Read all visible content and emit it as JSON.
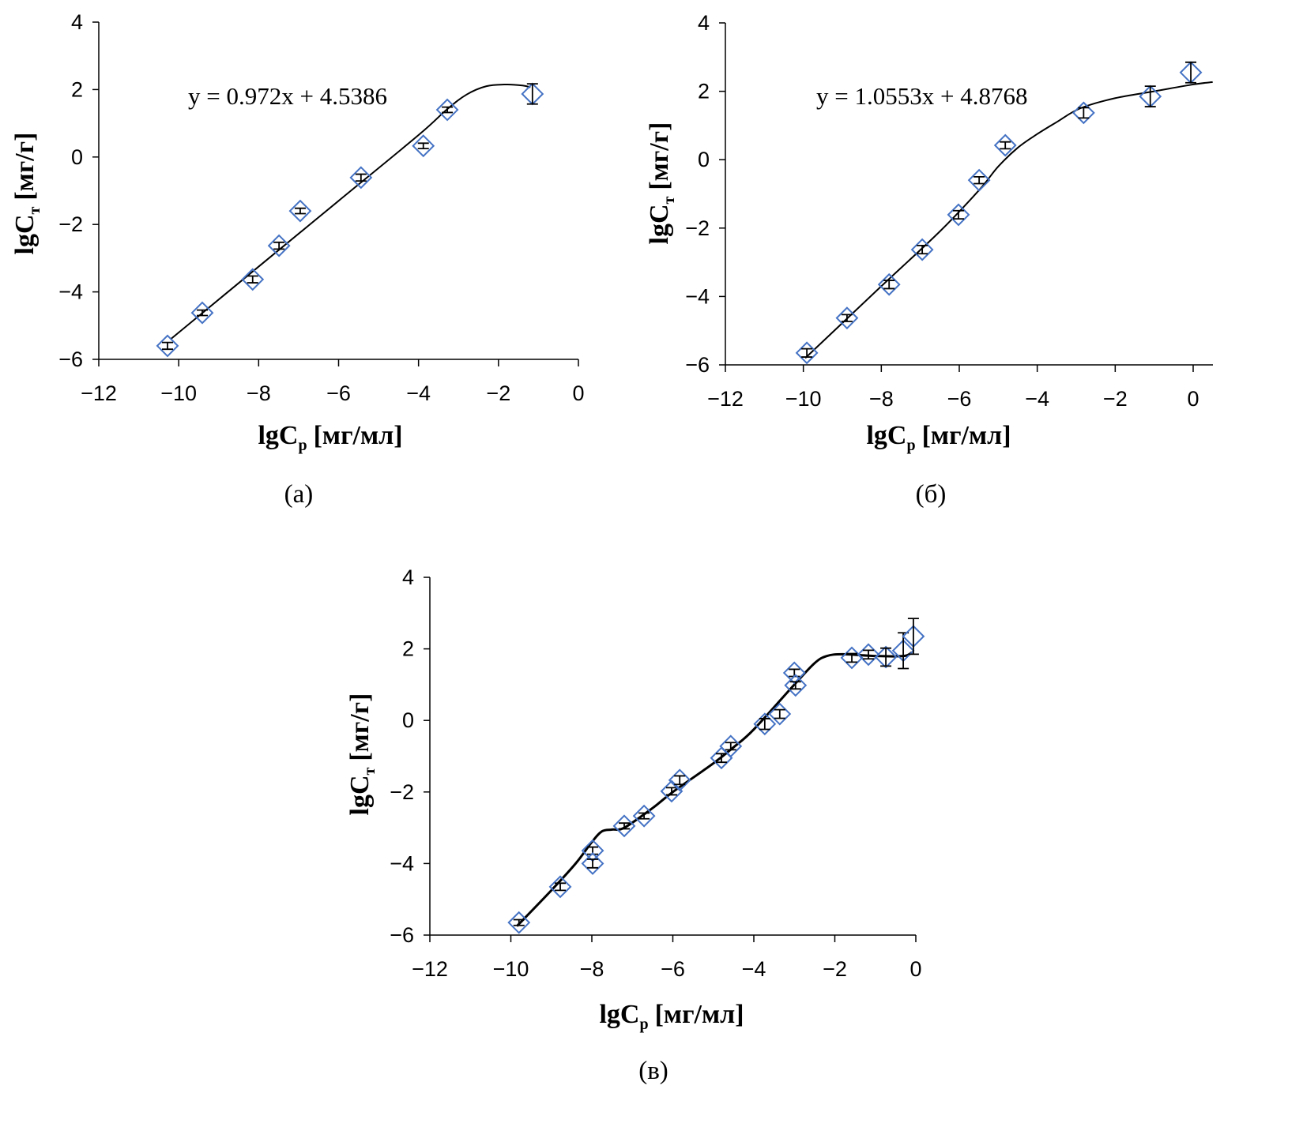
{
  "chart_data": [
    {
      "type": "scatter",
      "caption": "(а)",
      "xlabel": {
        "main": "lgC",
        "sub": "р",
        "unit": "[мг/мл]"
      },
      "ylabel": {
        "main": "lgC",
        "sub": "т",
        "unit": "[мг/г]"
      },
      "xlim": [
        -12,
        0
      ],
      "ylim": [
        -6,
        4
      ],
      "xticks": [
        -12,
        -10,
        -8,
        -6,
        -4,
        -2,
        0
      ],
      "yticks": [
        -6,
        -4,
        -2,
        0,
        2,
        4
      ],
      "xtick_labels": [
        "−12",
        "−10",
        "−8",
        "−6",
        "−4",
        "−2",
        "0"
      ],
      "ytick_labels": [
        "−6",
        "−4",
        "−2",
        "0",
        "2",
        "4"
      ],
      "annotation": "y = 0.972x + 4.5386",
      "marker_color": "#4472c4",
      "points": [
        {
          "x": -10.28,
          "y": -5.6,
          "err": 0.1
        },
        {
          "x": -9.41,
          "y": -4.62,
          "err": 0.08
        },
        {
          "x": -8.15,
          "y": -3.63,
          "err": 0.1
        },
        {
          "x": -7.49,
          "y": -2.63,
          "err": 0.1
        },
        {
          "x": -6.96,
          "y": -1.6,
          "err": 0.08
        },
        {
          "x": -5.44,
          "y": -0.61,
          "err": 0.1
        },
        {
          "x": -3.88,
          "y": 0.33,
          "err": 0.08
        },
        {
          "x": -3.28,
          "y": 1.4,
          "err": 0.08
        },
        {
          "x": -1.15,
          "y": 1.87,
          "err": 0.3
        }
      ],
      "fit_curve": [
        [
          -10.2,
          -5.4
        ],
        [
          -8,
          -3.25
        ],
        [
          -6,
          -1.3
        ],
        [
          -4,
          0.65
        ],
        [
          -3.3,
          1.4
        ],
        [
          -2.8,
          1.85
        ],
        [
          -2.3,
          2.1
        ],
        [
          -1.8,
          2.15
        ],
        [
          -1.4,
          2.12
        ],
        [
          -1.2,
          2.07
        ]
      ]
    },
    {
      "type": "scatter",
      "caption": "(б)",
      "xlabel": {
        "main": "lgC",
        "sub": "р",
        "unit": "[мг/мл]"
      },
      "ylabel": {
        "main": "lgC",
        "sub": "т",
        "unit": "[мг/г]"
      },
      "xlim": [
        -12,
        0.5
      ],
      "ylim": [
        -6,
        4
      ],
      "xticks": [
        -12,
        -10,
        -8,
        -6,
        -4,
        -2,
        0
      ],
      "yticks": [
        -6,
        -4,
        -2,
        0,
        2,
        4
      ],
      "xtick_labels": [
        "−12",
        "−10",
        "−8",
        "−6",
        "−4",
        "−2",
        "0"
      ],
      "ytick_labels": [
        "−6",
        "−4",
        "−2",
        "0",
        "2",
        "4"
      ],
      "annotation": "y = 1.0553x + 4.8768",
      "marker_color": "#4472c4",
      "points": [
        {
          "x": -9.91,
          "y": -5.65,
          "err": 0.12
        },
        {
          "x": -8.88,
          "y": -4.63,
          "err": 0.1
        },
        {
          "x": -7.8,
          "y": -3.65,
          "err": 0.12
        },
        {
          "x": -6.95,
          "y": -2.63,
          "err": 0.12
        },
        {
          "x": -6.02,
          "y": -1.61,
          "err": 0.12
        },
        {
          "x": -5.49,
          "y": -0.6,
          "err": 0.1
        },
        {
          "x": -4.82,
          "y": 0.42,
          "err": 0.1
        },
        {
          "x": -2.81,
          "y": 1.37,
          "err": 0.15
        },
        {
          "x": -1.1,
          "y": 1.85,
          "err": 0.3
        },
        {
          "x": -0.06,
          "y": 2.55,
          "err": 0.3
        }
      ],
      "fit_curve": [
        [
          -9.95,
          -5.8
        ],
        [
          -8,
          -3.7
        ],
        [
          -6.5,
          -2.1
        ],
        [
          -5.5,
          -0.9
        ],
        [
          -5,
          -0.2
        ],
        [
          -4.5,
          0.35
        ],
        [
          -4,
          0.75
        ],
        [
          -3.5,
          1.1
        ],
        [
          -2.9,
          1.5
        ],
        [
          -2,
          1.8
        ],
        [
          -1,
          2.0
        ],
        [
          0,
          2.2
        ],
        [
          0.5,
          2.27
        ]
      ]
    },
    {
      "type": "scatter",
      "caption": "(в)",
      "xlabel": {
        "main": "lgC",
        "sub": "р",
        "unit": "[мг/мл]"
      },
      "ylabel": {
        "main": "lgC",
        "sub": "т",
        "unit": "[мг/г]"
      },
      "xlim": [
        -12,
        0
      ],
      "ylim": [
        -6,
        4
      ],
      "xticks": [
        -12,
        -10,
        -8,
        -6,
        -4,
        -2,
        0
      ],
      "yticks": [
        -6,
        -4,
        -2,
        0,
        2,
        4
      ],
      "xtick_labels": [
        "−12",
        "−10",
        "−8",
        "−6",
        "−4",
        "−2",
        "0"
      ],
      "ytick_labels": [
        "−6",
        "−4",
        "−2",
        "0",
        "2",
        "4"
      ],
      "annotation": "",
      "marker_color": "#4472c4",
      "points": [
        {
          "x": -9.8,
          "y": -5.65,
          "err": 0.08
        },
        {
          "x": -8.78,
          "y": -4.65,
          "err": 0.1
        },
        {
          "x": -7.98,
          "y": -3.64,
          "err": 0.1
        },
        {
          "x": -7.98,
          "y": -4.0,
          "err": 0.12
        },
        {
          "x": -7.2,
          "y": -2.95,
          "err": 0.08
        },
        {
          "x": -6.71,
          "y": -2.67,
          "err": 0.08
        },
        {
          "x": -6.03,
          "y": -1.98,
          "err": 0.1
        },
        {
          "x": -5.83,
          "y": -1.67,
          "err": 0.12
        },
        {
          "x": -4.8,
          "y": -1.05,
          "err": 0.12
        },
        {
          "x": -4.57,
          "y": -0.72,
          "err": 0.1
        },
        {
          "x": -3.73,
          "y": -0.1,
          "err": 0.15
        },
        {
          "x": -3.36,
          "y": 0.18,
          "err": 0.12
        },
        {
          "x": -3.0,
          "y": 1.33,
          "err": 0.1
        },
        {
          "x": -2.97,
          "y": 0.98,
          "err": 0.1
        },
        {
          "x": -1.58,
          "y": 1.75,
          "err": 0.12
        },
        {
          "x": -1.17,
          "y": 1.84,
          "err": 0.12
        },
        {
          "x": -0.74,
          "y": 1.77,
          "err": 0.25
        },
        {
          "x": -0.31,
          "y": 1.95,
          "err": 0.5
        },
        {
          "x": -0.06,
          "y": 2.35,
          "err": 0.5
        }
      ],
      "fit_curve": [
        [
          -9.85,
          -5.75
        ],
        [
          -9,
          -4.75
        ],
        [
          -8.4,
          -4.0
        ],
        [
          -8,
          -3.4
        ],
        [
          -7.75,
          -3.1
        ],
        [
          -7.5,
          -3.05
        ],
        [
          -7.2,
          -3.0
        ],
        [
          -6.5,
          -2.45
        ],
        [
          -6,
          -2.0
        ],
        [
          -5,
          -1.2
        ],
        [
          -4.5,
          -0.75
        ],
        [
          -4,
          -0.25
        ],
        [
          -3,
          1.0
        ],
        [
          -2.5,
          1.6
        ],
        [
          -2.2,
          1.8
        ],
        [
          -1.8,
          1.85
        ],
        [
          -1,
          1.8
        ],
        [
          -0.3,
          1.8
        ],
        [
          -0.1,
          1.9
        ]
      ]
    }
  ]
}
